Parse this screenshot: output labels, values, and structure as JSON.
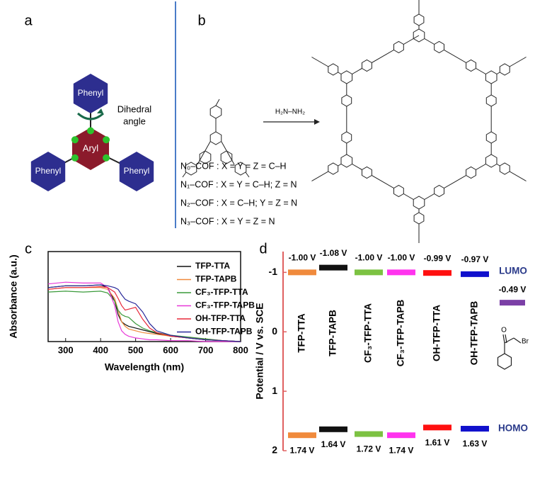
{
  "panels": {
    "a": {
      "label": "a",
      "aryl": "Aryl",
      "phenyls": [
        "Phenyl",
        "Phenyl",
        "Phenyl"
      ],
      "angle": [
        "Dihedral",
        "angle"
      ]
    },
    "b": {
      "label": "b",
      "reagent": "H₂N–NH₂",
      "variants": [
        "N₀–COF : X = Y = Z = C–H",
        "N₁–COF : X = Y = C–H; Z = N",
        "N₂–COF : X = C–H; Y = Z = N",
        "N₃–COF : X = Y = Z = N"
      ]
    }
  },
  "chart_data": [
    {
      "type": "line",
      "panel": "c",
      "xlabel": "Wavelength (nm)",
      "ylabel": "Absorbance (a.u.)",
      "xlim": [
        250,
        800
      ],
      "xticks": [
        300,
        400,
        500,
        600,
        700,
        800
      ],
      "ylim": [
        0,
        1
      ],
      "x": [
        250,
        300,
        350,
        400,
        420,
        440,
        450,
        460,
        470,
        480,
        500,
        520,
        540,
        560,
        600,
        650,
        700,
        750,
        800
      ],
      "series": [
        {
          "name": "TFP-TTA",
          "color": "#111111",
          "values": [
            0.6,
            0.62,
            0.62,
            0.63,
            0.6,
            0.45,
            0.3,
            0.22,
            0.19,
            0.17,
            0.15,
            0.13,
            0.11,
            0.09,
            0.06,
            0.04,
            0.02,
            0.01,
            0.0
          ]
        },
        {
          "name": "TFP-TAPB",
          "color": "#f08a3c",
          "values": [
            0.58,
            0.6,
            0.6,
            0.6,
            0.58,
            0.48,
            0.35,
            0.22,
            0.17,
            0.14,
            0.12,
            0.1,
            0.09,
            0.08,
            0.06,
            0.04,
            0.03,
            0.01,
            0.0
          ]
        },
        {
          "name": "CF₃-TFP-TTA",
          "color": "#3a9a3a",
          "values": [
            0.55,
            0.56,
            0.55,
            0.56,
            0.54,
            0.45,
            0.35,
            0.3,
            0.28,
            0.27,
            0.2,
            0.15,
            0.12,
            0.1,
            0.07,
            0.05,
            0.03,
            0.01,
            0.0
          ]
        },
        {
          "name": "CF₃-TFP-TAPB",
          "color": "#e838d8",
          "values": [
            0.64,
            0.66,
            0.65,
            0.65,
            0.6,
            0.4,
            0.22,
            0.12,
            0.08,
            0.06,
            0.04,
            0.03,
            0.02,
            0.02,
            0.01,
            0.01,
            0.0,
            0.0,
            0.0
          ]
        },
        {
          "name": "OH-TFP-TTA",
          "color": "#e8283a",
          "values": [
            0.58,
            0.6,
            0.6,
            0.61,
            0.6,
            0.55,
            0.48,
            0.4,
            0.35,
            0.36,
            0.38,
            0.25,
            0.15,
            0.1,
            0.06,
            0.04,
            0.02,
            0.01,
            0.0
          ]
        },
        {
          "name": "OH-TFP-TAPB",
          "color": "#2a2a9a",
          "values": [
            0.6,
            0.62,
            0.62,
            0.63,
            0.62,
            0.6,
            0.58,
            0.52,
            0.47,
            0.45,
            0.42,
            0.33,
            0.2,
            0.12,
            0.07,
            0.04,
            0.02,
            0.01,
            0.0
          ]
        }
      ]
    },
    {
      "type": "energy",
      "panel": "d",
      "ylabel": "Potential / V vs. SCE",
      "ylim": [
        -1.35,
        2
      ],
      "inverted": true,
      "yticks": [
        -1,
        0,
        1,
        2
      ],
      "categories": [
        "TFP-TTA",
        "TFP-TAPB",
        "CF₃-TFP-TTA",
        "CF₃-TFP-TAPB",
        "OH-TFP-TTA",
        "OH-TFP-TAPB"
      ],
      "colors": [
        "#f08a3c",
        "#111111",
        "#7cc242",
        "#ff33ee",
        "#ff1010",
        "#1010cc"
      ],
      "series": [
        {
          "name": "LUMO",
          "values": [
            -1.0,
            -1.08,
            -1.0,
            -1.0,
            -0.99,
            -0.97
          ],
          "value_labels": [
            "-1.00 V",
            "-1.08 V",
            "-1.00 V",
            "-1.00 V",
            "-0.99 V",
            "-0.97 V"
          ]
        },
        {
          "name": "HOMO",
          "values": [
            1.74,
            1.64,
            1.72,
            1.74,
            1.61,
            1.63
          ],
          "value_labels": [
            "1.74 V",
            "1.64 V",
            "1.72 V",
            "1.74 V",
            "1.61 V",
            "1.63 V"
          ]
        }
      ],
      "reference": {
        "value": -0.49,
        "value_label": "-0.49 V",
        "color": "#7b3fa6",
        "atoms": [
          "O",
          "Br"
        ]
      }
    }
  ]
}
